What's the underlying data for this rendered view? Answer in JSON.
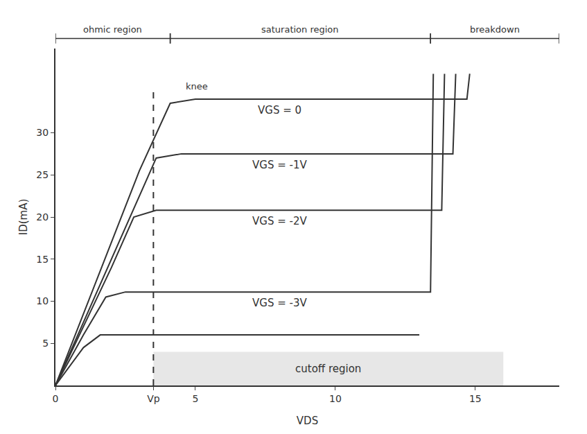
{
  "chart_data": {
    "type": "line",
    "x_label": "VDS",
    "y_label": "ID(mA)",
    "xlim": [
      0,
      18
    ],
    "ylim": [
      0,
      40
    ],
    "xticks": [
      0,
      {
        "value": 3.5,
        "label": "Vp"
      },
      5,
      10,
      15
    ],
    "yticks": [
      5,
      10,
      15,
      20,
      25,
      30
    ],
    "grid": false,
    "color": "#333333",
    "series": [
      {
        "name": "VGS = 0",
        "x": [
          0,
          1,
          2,
          3,
          4.1,
          5,
          14.7,
          14.8
        ],
        "values": [
          0,
          8.5,
          17,
          25.5,
          33.5,
          34,
          34,
          37
        ]
      },
      {
        "name": "VGS = -1V",
        "x": [
          0,
          1,
          2,
          3,
          3.6,
          4.5,
          14.2,
          14.3
        ],
        "values": [
          0,
          7.5,
          15,
          22.5,
          27,
          27.5,
          27.5,
          37
        ]
      },
      {
        "name": "VGS = -2V",
        "x": [
          0,
          1,
          2,
          2.8,
          3.6,
          13.8,
          13.9
        ],
        "values": [
          0,
          7,
          14,
          20,
          20.8,
          20.8,
          37
        ]
      },
      {
        "name": "VGS = -3V",
        "x": [
          0,
          1,
          1.8,
          2.5,
          13.4,
          13.5
        ],
        "values": [
          0,
          6,
          10.5,
          11.1,
          11.1,
          37
        ]
      },
      {
        "x": [
          0,
          1,
          1.6,
          13
        ],
        "values": [
          0,
          4.5,
          6,
          6
        ]
      },
      {
        "x": [
          3.5,
          3.5
        ],
        "values": [
          0,
          35
        ],
        "line_style": "dashed"
      }
    ],
    "regions": [
      {
        "label": "ohmic region",
        "from": 0,
        "to": 4.1
      },
      {
        "label": "saturation region",
        "from": 4.1,
        "to": 13.4
      },
      {
        "label": "breakdown",
        "from": 13.4,
        "to": 18
      }
    ],
    "shaded": {
      "label": "cutoff region",
      "x": [
        3.5,
        16
      ],
      "y": [
        0,
        4
      ]
    },
    "annotations": [
      {
        "text": "knee",
        "x": 4.6,
        "y": 35.5
      }
    ]
  }
}
